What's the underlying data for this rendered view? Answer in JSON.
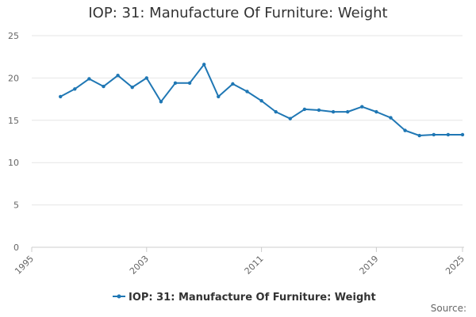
{
  "chart_data": {
    "type": "line",
    "title": "IOP: 31: Manufacture Of Furniture: Weight",
    "xlabel": "",
    "ylabel": "",
    "xlim": [
      1995,
      2025
    ],
    "ylim": [
      0,
      25
    ],
    "x_ticks": [
      "1995",
      "2003",
      "2011",
      "2019",
      "2025"
    ],
    "y_ticks": [
      "0",
      "5",
      "10",
      "15",
      "20",
      "25"
    ],
    "grid": "horizontal",
    "legend_position": "bottom",
    "series": [
      {
        "name": "IOP: 31: Manufacture Of Furniture: Weight",
        "color": "#1f77b4",
        "x": [
          1997,
          1998,
          1999,
          2000,
          2001,
          2002,
          2003,
          2004,
          2005,
          2006,
          2007,
          2008,
          2009,
          2010,
          2011,
          2012,
          2013,
          2014,
          2015,
          2016,
          2017,
          2018,
          2019,
          2020,
          2021,
          2022,
          2023,
          2024,
          2025
        ],
        "values": [
          17.8,
          18.7,
          19.9,
          19.0,
          20.3,
          18.9,
          20.0,
          17.2,
          19.4,
          19.4,
          21.6,
          17.8,
          19.3,
          18.4,
          17.3,
          16.0,
          15.2,
          16.3,
          16.2,
          16.0,
          16.0,
          16.6,
          16.0,
          15.3,
          13.8,
          13.2,
          13.3,
          13.3,
          13.3
        ]
      }
    ]
  },
  "footer": {
    "source": "Source:"
  }
}
